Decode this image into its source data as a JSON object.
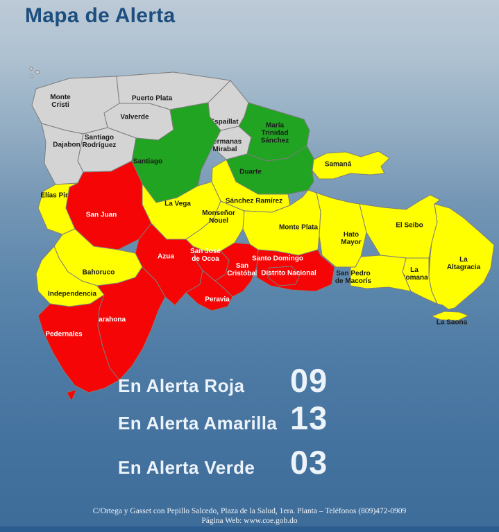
{
  "title": "Mapa de Alerta",
  "map": {
    "alert_colors": {
      "red": "#f50505",
      "yellow": "#ffff00",
      "green": "#21a421",
      "none": "#d4d4d4"
    },
    "label_colors": {
      "red": "#ffffff",
      "default": "#1b1b1b"
    },
    "provinces": [
      {
        "id": "monte-cristi",
        "name": "Monte Cristi",
        "alert": "none",
        "label_lines": [
          "Monte",
          "Cristi"
        ]
      },
      {
        "id": "puerto-plata",
        "name": "Puerto Plata",
        "alert": "none",
        "label_lines": [
          "Puerto Plata"
        ]
      },
      {
        "id": "valverde",
        "name": "Valverde",
        "alert": "none",
        "label_lines": [
          "Valverde"
        ]
      },
      {
        "id": "santiago-rodriguez",
        "name": "Santiago Rodríguez",
        "alert": "none",
        "label_lines": [
          "Santiago",
          "Rodríguez"
        ]
      },
      {
        "id": "dajabon",
        "name": "Dajabon",
        "alert": "none",
        "label_lines": [
          "Dajabon"
        ]
      },
      {
        "id": "espaillat",
        "name": "Espaillat",
        "alert": "none",
        "label_lines": [
          "Espaillat"
        ]
      },
      {
        "id": "hermanas-mirabal",
        "name": "Hermanas Mirabal",
        "alert": "none",
        "label_lines": [
          "Hermanas",
          "Mirabal"
        ]
      },
      {
        "id": "santiago",
        "name": "Santiago",
        "alert": "green",
        "label_lines": [
          "Santiago"
        ]
      },
      {
        "id": "maria-trinidad-sanchez",
        "name": "María Trinidad Sánchez",
        "alert": "green",
        "label_lines": [
          "María",
          "Trinidad",
          "Sánchez"
        ]
      },
      {
        "id": "duarte",
        "name": "Duarte",
        "alert": "green",
        "label_lines": [
          "Duarte"
        ]
      },
      {
        "id": "samana",
        "name": "Samaná",
        "alert": "yellow",
        "label_lines": [
          "Samaná"
        ]
      },
      {
        "id": "sanchez-ramirez",
        "name": "Sánchez Ramírez",
        "alert": "yellow",
        "label_lines": [
          "Sánchez Ramírez"
        ]
      },
      {
        "id": "la-vega",
        "name": "La Vega",
        "alert": "yellow",
        "label_lines": [
          "La Vega"
        ]
      },
      {
        "id": "monsenor-nouel",
        "name": "Monseñor Nouel",
        "alert": "yellow",
        "label_lines": [
          "Monseñor",
          "Nouel"
        ]
      },
      {
        "id": "elias-pina",
        "name": "Elías Pina",
        "alert": "yellow",
        "label_lines": [
          "Elías Pina"
        ]
      },
      {
        "id": "san-juan",
        "name": "San Juan",
        "alert": "red",
        "label_lines": [
          "San Juan"
        ]
      },
      {
        "id": "azua",
        "name": "Azua",
        "alert": "red",
        "label_lines": [
          "Azua"
        ]
      },
      {
        "id": "san-jose-de-ocoa",
        "name": "San José de Ocoa",
        "alert": "red",
        "label_lines": [
          "San José",
          "de Ocoa"
        ]
      },
      {
        "id": "san-cristobal",
        "name": "San Cristóbal",
        "alert": "red",
        "label_lines": [
          "San",
          "Cristóbal"
        ]
      },
      {
        "id": "santo-domingo",
        "name": "Santo Domingo",
        "alert": "red",
        "label_lines": [
          "Santo Domingo"
        ]
      },
      {
        "id": "distrito-nacional",
        "name": "Distrito Nacional",
        "alert": "red",
        "label_lines": [
          "Distrito Nacional"
        ]
      },
      {
        "id": "peravia",
        "name": "Peravia",
        "alert": "red",
        "label_lines": [
          "Peravia"
        ]
      },
      {
        "id": "monte-plata",
        "name": "Monte Plata",
        "alert": "yellow",
        "label_lines": [
          "Monte Plata"
        ]
      },
      {
        "id": "hato-mayor",
        "name": "Hato Mayor",
        "alert": "yellow",
        "label_lines": [
          "Hato",
          "Mayor"
        ]
      },
      {
        "id": "el-seibo",
        "name": "El Seibo",
        "alert": "yellow",
        "label_lines": [
          "El Seibo"
        ]
      },
      {
        "id": "la-altagracia",
        "name": "La Altagracia",
        "alert": "yellow",
        "label_lines": [
          "La",
          "Altagracia"
        ]
      },
      {
        "id": "la-romana",
        "name": "La Romana",
        "alert": "yellow",
        "label_lines": [
          "La",
          "Romana"
        ]
      },
      {
        "id": "san-pedro-de-macoris",
        "name": "San Pedro de Macorís",
        "alert": "yellow",
        "label_lines": [
          "San Pedro",
          "de Macorís"
        ]
      },
      {
        "id": "bahoruco",
        "name": "Bahoruco",
        "alert": "yellow",
        "label_lines": [
          "Bahoruco"
        ]
      },
      {
        "id": "independencia",
        "name": "Independencia",
        "alert": "yellow",
        "label_lines": [
          "Independencia"
        ]
      },
      {
        "id": "barahona",
        "name": "Barahona",
        "alert": "red",
        "label_lines": [
          "Barahona"
        ]
      },
      {
        "id": "pedernales",
        "name": "Pedernales",
        "alert": "red",
        "label_lines": [
          "Pedernales"
        ]
      },
      {
        "id": "la-saona",
        "name": "La Saona",
        "alert": "yellow",
        "label_lines": [
          "La Saona"
        ]
      }
    ]
  },
  "legend": {
    "rows": [
      {
        "label": "En Alerta Roja",
        "value": "09",
        "alert": "red"
      },
      {
        "label": "En Alerta Amarilla",
        "value": "13",
        "alert": "yellow"
      },
      {
        "label": "En Alerta Verde",
        "value": "03",
        "alert": "green"
      }
    ]
  },
  "footer": {
    "line1": "C/Ortega y Gasset con Pepillo Salcedo, Plaza de la Salud, 1era. Planta – Teléfonos (809)472-0909",
    "line2": "Página Web: www.coe.gob.do"
  }
}
